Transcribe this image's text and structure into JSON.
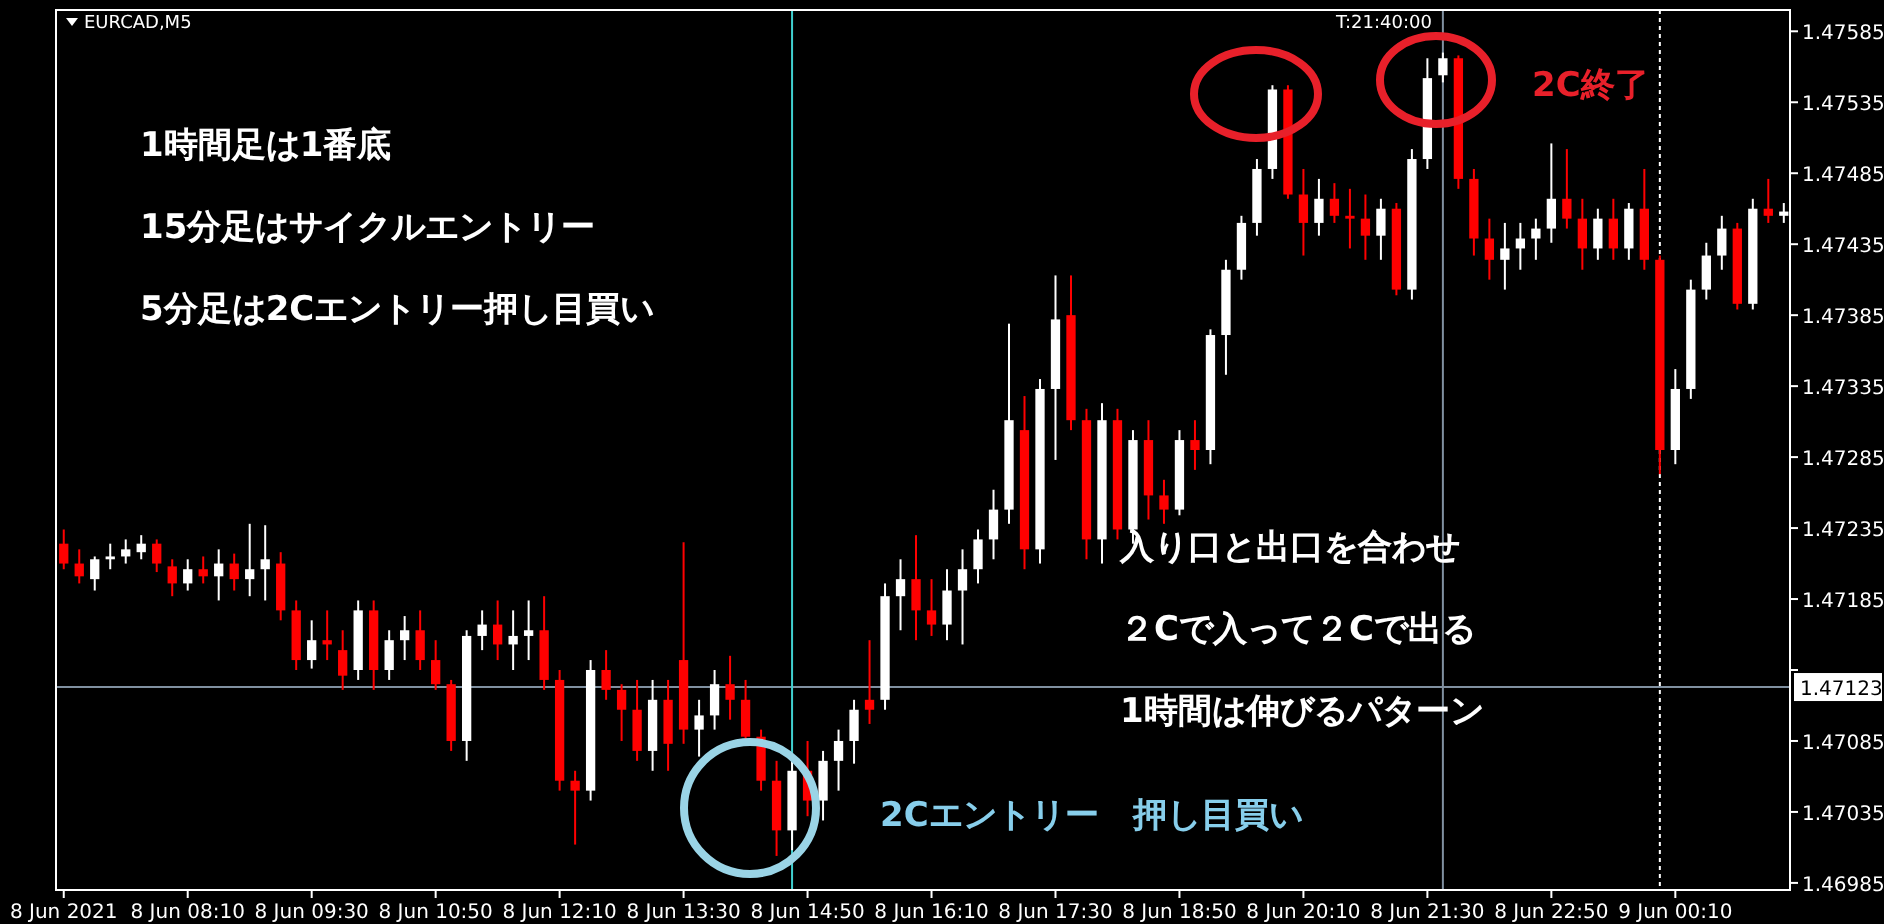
{
  "chart_data": {
    "type": "candlestick",
    "title": "EURCAD,M5",
    "x": [
      "2021-06-08T06:50",
      "2021-06-08T07:00",
      "2021-06-08T07:10",
      "2021-06-08T07:20",
      "2021-06-08T07:30",
      "2021-06-08T07:40",
      "2021-06-08T07:50",
      "2021-06-08T08:00",
      "2021-06-08T08:10",
      "2021-06-08T08:20",
      "2021-06-08T08:30",
      "2021-06-08T08:40",
      "2021-06-08T08:50",
      "2021-06-08T09:00",
      "2021-06-08T09:10",
      "2021-06-08T09:20",
      "2021-06-08T09:30",
      "2021-06-08T09:40",
      "2021-06-08T09:50",
      "2021-06-08T10:00",
      "2021-06-08T10:10",
      "2021-06-08T10:20",
      "2021-06-08T10:30",
      "2021-06-08T10:40",
      "2021-06-08T10:50",
      "2021-06-08T11:00",
      "2021-06-08T11:10",
      "2021-06-08T11:20",
      "2021-06-08T11:30",
      "2021-06-08T11:40",
      "2021-06-08T11:50",
      "2021-06-08T12:00",
      "2021-06-08T12:10",
      "2021-06-08T12:20",
      "2021-06-08T12:30",
      "2021-06-08T12:40",
      "2021-06-08T12:50",
      "2021-06-08T13:00",
      "2021-06-08T13:10",
      "2021-06-08T13:20",
      "2021-06-08T13:30",
      "2021-06-08T13:40",
      "2021-06-08T13:50",
      "2021-06-08T14:00",
      "2021-06-08T14:10",
      "2021-06-08T14:20",
      "2021-06-08T14:30",
      "2021-06-08T14:40",
      "2021-06-08T14:50",
      "2021-06-08T15:00",
      "2021-06-08T15:10",
      "2021-06-08T15:20",
      "2021-06-08T15:30",
      "2021-06-08T15:40",
      "2021-06-08T15:50",
      "2021-06-08T16:00",
      "2021-06-08T16:10",
      "2021-06-08T16:20",
      "2021-06-08T16:30",
      "2021-06-08T16:40",
      "2021-06-08T16:50",
      "2021-06-08T17:00",
      "2021-06-08T17:10",
      "2021-06-08T17:20",
      "2021-06-08T17:30",
      "2021-06-08T17:40",
      "2021-06-08T17:50",
      "2021-06-08T18:00",
      "2021-06-08T18:10",
      "2021-06-08T18:20",
      "2021-06-08T18:30",
      "2021-06-08T18:40",
      "2021-06-08T18:50",
      "2021-06-08T19:00",
      "2021-06-08T19:10",
      "2021-06-08T19:20",
      "2021-06-08T19:30",
      "2021-06-08T19:40",
      "2021-06-08T19:50",
      "2021-06-08T20:00",
      "2021-06-08T20:10",
      "2021-06-08T20:20",
      "2021-06-08T20:30",
      "2021-06-08T20:40",
      "2021-06-08T20:50",
      "2021-06-08T21:00",
      "2021-06-08T21:10",
      "2021-06-08T21:20",
      "2021-06-08T21:30",
      "2021-06-08T21:40",
      "2021-06-08T21:50",
      "2021-06-08T22:00",
      "2021-06-08T22:10",
      "2021-06-08T22:20",
      "2021-06-08T22:30",
      "2021-06-08T22:40",
      "2021-06-08T22:50",
      "2021-06-08T23:00",
      "2021-06-08T23:10",
      "2021-06-08T23:20",
      "2021-06-08T23:30",
      "2021-06-08T23:40",
      "2021-06-08T23:50",
      "2021-06-09T00:00",
      "2021-06-09T00:10",
      "2021-06-09T00:20",
      "2021-06-09T00:30",
      "2021-06-09T00:40",
      "2021-06-09T00:50",
      "2021-06-09T01:00",
      "2021-06-09T01:10",
      "2021-06-09T01:20"
    ],
    "ohlc": [
      [
        1.47224,
        1.47234,
        1.47206,
        1.4721
      ],
      [
        1.4721,
        1.4722,
        1.47196,
        1.47201
      ],
      [
        1.47199,
        1.47215,
        1.47191,
        1.47213
      ],
      [
        1.47213,
        1.47224,
        1.47206,
        1.47215
      ],
      [
        1.47215,
        1.47227,
        1.4721,
        1.4722
      ],
      [
        1.47218,
        1.4723,
        1.47213,
        1.47224
      ],
      [
        1.47224,
        1.47227,
        1.47204,
        1.4721
      ],
      [
        1.47208,
        1.47213,
        1.47187,
        1.47196
      ],
      [
        1.47196,
        1.47213,
        1.47191,
        1.47206
      ],
      [
        1.47206,
        1.47215,
        1.47196,
        1.47201
      ],
      [
        1.47201,
        1.4722,
        1.47184,
        1.4721
      ],
      [
        1.4721,
        1.47217,
        1.47191,
        1.47199
      ],
      [
        1.47199,
        1.47238,
        1.47187,
        1.47206
      ],
      [
        1.47206,
        1.47237,
        1.47184,
        1.47213
      ],
      [
        1.4721,
        1.47218,
        1.4717,
        1.47177
      ],
      [
        1.47177,
        1.47184,
        1.47135,
        1.47142
      ],
      [
        1.47142,
        1.4717,
        1.47136,
        1.47156
      ],
      [
        1.47156,
        1.47177,
        1.47142,
        1.47153
      ],
      [
        1.47149,
        1.47163,
        1.47121,
        1.47131
      ],
      [
        1.47135,
        1.47184,
        1.47128,
        1.47177
      ],
      [
        1.47177,
        1.47184,
        1.47121,
        1.47135
      ],
      [
        1.47135,
        1.47163,
        1.47128,
        1.47156
      ],
      [
        1.47156,
        1.47173,
        1.47142,
        1.47163
      ],
      [
        1.47163,
        1.47177,
        1.47135,
        1.47142
      ],
      [
        1.47142,
        1.47156,
        1.47121,
        1.47125
      ],
      [
        1.47125,
        1.47128,
        1.47078,
        1.47085
      ],
      [
        1.47085,
        1.47163,
        1.47071,
        1.47159
      ],
      [
        1.47159,
        1.47177,
        1.47149,
        1.47167
      ],
      [
        1.47167,
        1.47184,
        1.47142,
        1.47153
      ],
      [
        1.47153,
        1.47177,
        1.47135,
        1.47159
      ],
      [
        1.47159,
        1.47184,
        1.47142,
        1.47163
      ],
      [
        1.47163,
        1.47187,
        1.47121,
        1.47128
      ],
      [
        1.47128,
        1.47135,
        1.4705,
        1.47057
      ],
      [
        1.47057,
        1.47064,
        1.47012,
        1.4705
      ],
      [
        1.4705,
        1.47142,
        1.47043,
        1.47135
      ],
      [
        1.47135,
        1.47149,
        1.47114,
        1.47121
      ],
      [
        1.47121,
        1.47125,
        1.47085,
        1.47107
      ],
      [
        1.47107,
        1.47128,
        1.47071,
        1.47078
      ],
      [
        1.47078,
        1.47128,
        1.47064,
        1.47114
      ],
      [
        1.47114,
        1.47128,
        1.47064,
        1.47083
      ],
      [
        1.47142,
        1.47225,
        1.47083,
        1.47093
      ],
      [
        1.47093,
        1.47114,
        1.47074,
        1.47103
      ],
      [
        1.47103,
        1.47135,
        1.47093,
        1.47125
      ],
      [
        1.47125,
        1.47145,
        1.471,
        1.47114
      ],
      [
        1.47114,
        1.47128,
        1.47083,
        1.47088
      ],
      [
        1.47088,
        1.47093,
        1.4705,
        1.47057
      ],
      [
        1.47057,
        1.47071,
        1.47004,
        1.47022
      ],
      [
        1.47022,
        1.47071,
        1.47008,
        1.47064
      ],
      [
        1.47064,
        1.47085,
        1.47032,
        1.47043
      ],
      [
        1.47043,
        1.47078,
        1.47029,
        1.47071
      ],
      [
        1.47071,
        1.47093,
        1.4705,
        1.47085
      ],
      [
        1.47085,
        1.47114,
        1.47069,
        1.47107
      ],
      [
        1.47114,
        1.47156,
        1.47097,
        1.47107
      ],
      [
        1.47114,
        1.47196,
        1.47107,
        1.47187
      ],
      [
        1.47187,
        1.47213,
        1.47163,
        1.47199
      ],
      [
        1.47199,
        1.4723,
        1.47156,
        1.47177
      ],
      [
        1.47177,
        1.47199,
        1.47159,
        1.47167
      ],
      [
        1.47167,
        1.47206,
        1.47156,
        1.47191
      ],
      [
        1.47191,
        1.4722,
        1.47153,
        1.47206
      ],
      [
        1.47206,
        1.47234,
        1.47196,
        1.47227
      ],
      [
        1.47227,
        1.47262,
        1.47213,
        1.47248
      ],
      [
        1.47248,
        1.47379,
        1.47238,
        1.47311
      ],
      [
        1.47304,
        1.47328,
        1.47206,
        1.4722
      ],
      [
        1.4722,
        1.4734,
        1.4721,
        1.47333
      ],
      [
        1.47333,
        1.47413,
        1.47283,
        1.47382
      ],
      [
        1.47385,
        1.47413,
        1.47304,
        1.47311
      ],
      [
        1.47311,
        1.47319,
        1.47213,
        1.47227
      ],
      [
        1.47227,
        1.47323,
        1.4721,
        1.47311
      ],
      [
        1.47311,
        1.47319,
        1.47227,
        1.47234
      ],
      [
        1.47234,
        1.47304,
        1.47224,
        1.47297
      ],
      [
        1.47297,
        1.47311,
        1.47241,
        1.47258
      ],
      [
        1.47258,
        1.47269,
        1.47238,
        1.47248
      ],
      [
        1.47248,
        1.47304,
        1.47244,
        1.47297
      ],
      [
        1.47297,
        1.47311,
        1.47276,
        1.4729
      ],
      [
        1.4729,
        1.47375,
        1.4728,
        1.47371
      ],
      [
        1.47371,
        1.47424,
        1.47343,
        1.47417
      ],
      [
        1.47417,
        1.47455,
        1.4741,
        1.4745
      ],
      [
        1.4745,
        1.47495,
        1.47441,
        1.47488
      ],
      [
        1.47488,
        1.47547,
        1.47481,
        1.47544
      ],
      [
        1.47544,
        1.47547,
        1.47467,
        1.4747
      ],
      [
        1.4747,
        1.47488,
        1.47427,
        1.4745
      ],
      [
        1.4745,
        1.47481,
        1.47441,
        1.47467
      ],
      [
        1.47467,
        1.47478,
        1.4745,
        1.47455
      ],
      [
        1.47455,
        1.47474,
        1.47432,
        1.47453
      ],
      [
        1.47453,
        1.4747,
        1.47424,
        1.47441
      ],
      [
        1.47441,
        1.47467,
        1.47424,
        1.4746
      ],
      [
        1.4746,
        1.47464,
        1.47399,
        1.47403
      ],
      [
        1.47403,
        1.47502,
        1.47396,
        1.47495
      ],
      [
        1.47495,
        1.47566,
        1.47488,
        1.47552
      ],
      [
        1.47554,
        1.4757,
        1.47549,
        1.47566
      ],
      [
        1.47566,
        1.47568,
        1.47474,
        1.47481
      ],
      [
        1.47481,
        1.47488,
        1.47427,
        1.47439
      ],
      [
        1.47439,
        1.47453,
        1.4741,
        1.47424
      ],
      [
        1.47424,
        1.4745,
        1.47403,
        1.47432
      ],
      [
        1.47432,
        1.4745,
        1.47417,
        1.47439
      ],
      [
        1.47439,
        1.47453,
        1.47424,
        1.47446
      ],
      [
        1.47446,
        1.47506,
        1.47436,
        1.47467
      ],
      [
        1.47467,
        1.47502,
        1.47446,
        1.47453
      ],
      [
        1.47453,
        1.47467,
        1.47417,
        1.47432
      ],
      [
        1.47432,
        1.4746,
        1.47424,
        1.47453
      ],
      [
        1.47453,
        1.47467,
        1.47424,
        1.47432
      ],
      [
        1.47432,
        1.47464,
        1.47424,
        1.4746
      ],
      [
        1.4746,
        1.47488,
        1.47417,
        1.47424
      ],
      [
        1.47424,
        1.47427,
        1.47273,
        1.4729
      ],
      [
        1.4729,
        1.47347,
        1.4728,
        1.47333
      ],
      [
        1.47333,
        1.4741,
        1.47326,
        1.47403
      ],
      [
        1.47403,
        1.47436,
        1.47396,
        1.47427
      ],
      [
        1.47427,
        1.47455,
        1.47417,
        1.47446
      ],
      [
        1.47446,
        1.4745,
        1.47389,
        1.47393
      ],
      [
        1.47393,
        1.47467,
        1.47389,
        1.4746
      ],
      [
        1.4746,
        1.47481,
        1.4745,
        1.47455
      ],
      [
        1.47455,
        1.47464,
        1.4745,
        1.47458
      ]
    ],
    "colors": [
      "#ff0000",
      "#ff0000",
      "#ffffff",
      "#ffffff",
      "#ffffff",
      "#ffffff",
      "#ff0000",
      "#ff0000",
      "#ffffff",
      "#ff0000",
      "#ffffff",
      "#ff0000",
      "#ffffff",
      "#ffffff",
      "#ff0000",
      "#ff0000",
      "#ffffff",
      "#ff0000",
      "#ff0000",
      "#ffffff",
      "#ff0000",
      "#ffffff",
      "#ffffff",
      "#ff0000",
      "#ff0000",
      "#ff0000",
      "#ffffff",
      "#ffffff",
      "#ff0000",
      "#ffffff",
      "#ffffff",
      "#ff0000",
      "#ff0000",
      "#ff0000",
      "#ffffff",
      "#ff0000",
      "#ff0000",
      "#ff0000",
      "#ffffff",
      "#ff0000",
      "#ff0000",
      "#ffffff",
      "#ffffff",
      "#ff0000",
      "#ff0000",
      "#ff0000",
      "#ff0000",
      "#ffffff",
      "#ff0000",
      "#ffffff",
      "#ffffff",
      "#ffffff",
      "#ff0000",
      "#ffffff",
      "#ffffff",
      "#ff0000",
      "#ff0000",
      "#ffffff",
      "#ffffff",
      "#ffffff",
      "#ffffff",
      "#ffffff",
      "#ff0000",
      "#ffffff",
      "#ffffff",
      "#ff0000",
      "#ff0000",
      "#ffffff",
      "#ff0000",
      "#ffffff",
      "#ff0000",
      "#ff0000",
      "#ffffff",
      "#ff0000",
      "#ffffff",
      "#ffffff",
      "#ffffff",
      "#ffffff",
      "#ffffff",
      "#ff0000",
      "#ff0000",
      "#ffffff",
      "#ff0000",
      "#ff0000",
      "#ff0000",
      "#ffffff",
      "#ff0000",
      "#ffffff",
      "#ffffff",
      "#ffffff",
      "#ff0000",
      "#ff0000",
      "#ff0000",
      "#ffffff",
      "#ffffff",
      "#ffffff",
      "#ffffff",
      "#ff0000",
      "#ff0000",
      "#ffffff",
      "#ff0000",
      "#ffffff",
      "#ff0000",
      "#ff0000",
      "#ffffff",
      "#ffffff",
      "#ffffff",
      "#ffffff",
      "#ff0000",
      "#ffffff",
      "#ff0000",
      "#ffffff"
    ],
    "xlim": [
      "2021-06-08T06:45",
      "2021-06-09T01:24"
    ],
    "ylim": [
      1.4698,
      1.476
    ],
    "xticks": [
      {
        "value": "2021-06-08T06:50",
        "label": "8 Jun 2021"
      },
      {
        "value": "2021-06-08T08:10",
        "label": "8 Jun 08:10"
      },
      {
        "value": "2021-06-08T09:30",
        "label": "8 Jun 09:30"
      },
      {
        "value": "2021-06-08T10:50",
        "label": "8 Jun 10:50"
      },
      {
        "value": "2021-06-08T12:10",
        "label": "8 Jun 12:10"
      },
      {
        "value": "2021-06-08T13:30",
        "label": "8 Jun 13:30"
      },
      {
        "value": "2021-06-08T14:50",
        "label": "8 Jun 14:50"
      },
      {
        "value": "2021-06-08T16:10",
        "label": "8 Jun 16:10"
      },
      {
        "value": "2021-06-08T17:30",
        "label": "8 Jun 17:30"
      },
      {
        "value": "2021-06-08T18:50",
        "label": "8 Jun 18:50"
      },
      {
        "value": "2021-06-08T20:10",
        "label": "8 Jun 20:10"
      },
      {
        "value": "2021-06-08T21:30",
        "label": "8 Jun 21:30"
      },
      {
        "value": "2021-06-08T22:50",
        "label": "8 Jun 22:50"
      },
      {
        "value": "2021-06-09T00:10",
        "label": "9 Jun 00:10"
      }
    ],
    "yticks": [
      1.46985,
      1.47035,
      1.47085,
      {
        "value": 1.47135,
        "label": null
      },
      1.47185,
      1.47235,
      1.47285,
      1.47335,
      1.47385,
      1.47435,
      1.47485,
      1.47535,
      1.47585
    ],
    "ref_lines": [
      {
        "axis": "y",
        "value": 1.47123,
        "label": "1.47123",
        "color": "#8090a0"
      },
      {
        "axis": "x",
        "value": "2021-06-08T14:40",
        "color": "#40d0d0"
      },
      {
        "axis": "x",
        "value": "2021-06-08T21:40",
        "color": "#8090a0"
      },
      {
        "axis": "x",
        "value": "2021-06-09T00:00",
        "color": "#ffffff",
        "line_style": "dotted"
      }
    ],
    "annotations": [
      "1時間足は1番底",
      "15分足はサイクルエントリー",
      "5分足は2Cエントリー押し目買い",
      "入り口と出口を合わせ",
      "２Cで入って２Cで出る",
      "1時間は伸びるパターン",
      "2Cエントリー　押し目買い",
      "2C終了",
      "T:21:40:00"
    ]
  }
}
